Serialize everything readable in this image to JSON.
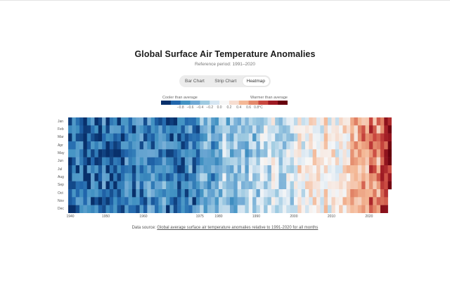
{
  "title": "Global Surface Air Temperature Anomalies",
  "subtitle": "Reference period: 1991–2020",
  "tabs": [
    {
      "label": "Bar Chart",
      "active": false
    },
    {
      "label": "Strip Chart",
      "active": false
    },
    {
      "label": "Heatmap",
      "active": true
    }
  ],
  "legend": {
    "cool_label": "Cooler than average",
    "warm_label": "Warmer than average",
    "ticks": [
      "−0.8",
      "−0.6",
      "−0.4",
      "−0.2",
      "0.0",
      "0.2",
      "0.4",
      "0.6",
      "0.8°C"
    ],
    "colors": [
      "#08306b",
      "#2166ac",
      "#4393c3",
      "#6ea8d4",
      "#9ecae1",
      "#d6e6f2",
      "#f7f7f7",
      "#f6ddd0",
      "#f4b896",
      "#e3886a",
      "#c9473f",
      "#9e1a23",
      "#67000d"
    ]
  },
  "source": {
    "prefix": "Data source:",
    "link_text": "Global average surface air temperature anomalies relative to 1991-2020 for all months"
  },
  "chart_data": {
    "type": "heatmap",
    "xlabel": "",
    "ylabel": "",
    "x_tick_labels": [
      "1940",
      "1950",
      "1960",
      "1975",
      "1980",
      "1990",
      "2000",
      "2010",
      "2020"
    ],
    "y_categories": [
      "Jan",
      "Feb",
      "Mar",
      "Apr",
      "May",
      "Jun",
      "Jul",
      "Aug",
      "Sep",
      "Oct",
      "Nov",
      "Dec"
    ],
    "x_range": [
      1940,
      2025
    ],
    "value_range": [
      -0.9,
      0.9
    ],
    "unit": "°C",
    "decadal_trend": [
      {
        "start": 1940,
        "end": 1949,
        "mean_anomaly": -0.7
      },
      {
        "start": 1950,
        "end": 1959,
        "mean_anomaly": -0.68
      },
      {
        "start": 1960,
        "end": 1969,
        "mean_anomaly": -0.62
      },
      {
        "start": 1970,
        "end": 1974,
        "mean_anomaly": -0.6
      },
      {
        "start": 1975,
        "end": 1979,
        "mean_anomaly": -0.45
      },
      {
        "start": 1980,
        "end": 1989,
        "mean_anomaly": -0.33
      },
      {
        "start": 1990,
        "end": 1999,
        "mean_anomaly": -0.18
      },
      {
        "start": 2000,
        "end": 2009,
        "mean_anomaly": 0.0
      },
      {
        "start": 2010,
        "end": 2014,
        "mean_anomaly": 0.1
      },
      {
        "start": 2015,
        "end": 2019,
        "mean_anomaly": 0.35
      },
      {
        "start": 2020,
        "end": 2022,
        "mean_anomaly": 0.45
      },
      {
        "start": 2023,
        "end": 2025,
        "mean_anomaly": 0.72
      }
    ]
  }
}
